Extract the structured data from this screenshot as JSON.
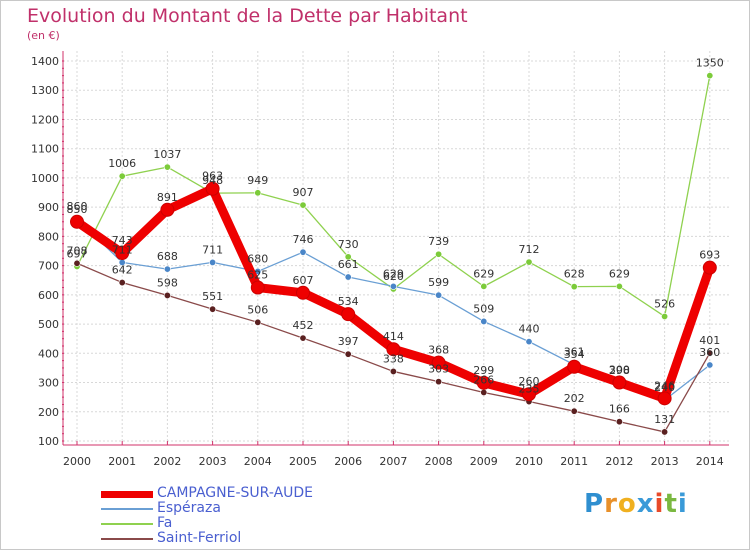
{
  "title": "Evolution du Montant de la Dette par Habitant",
  "unit": "(en €)",
  "logo": "Proxiti",
  "colors": {
    "title": "#c0306a",
    "grid": "#d8d8d8",
    "axis": "#d0306a",
    "legend_text": "#4a5fd0"
  },
  "chart_data": {
    "type": "line",
    "x": [
      "2000",
      "2001",
      "2002",
      "2003",
      "2004",
      "2005",
      "2006",
      "2007",
      "2008",
      "2009",
      "2010",
      "2011",
      "2012",
      "2013",
      "2014"
    ],
    "ylim": [
      100,
      1400
    ],
    "yticks": [
      "100",
      "200",
      "300",
      "400",
      "500",
      "600",
      "700",
      "800",
      "900",
      "1000",
      "1100",
      "1200",
      "1300",
      "1400"
    ],
    "grid": true,
    "legend_position": "bottom-left",
    "series": [
      {
        "name": "Fa",
        "color": "#8fd14f",
        "marker": "#7ccb3a",
        "values": [
          697,
          1006,
          1037,
          948,
          949,
          907,
          730,
          620,
          739,
          629,
          712,
          628,
          629,
          526,
          1350
        ],
        "labels": [
          "697",
          "1006",
          "1037",
          "948",
          "949",
          "907",
          "730",
          "620",
          "739",
          "629",
          "712",
          "628",
          "629",
          "526",
          "1350"
        ]
      },
      {
        "name": "Espéraza",
        "color": "#6a9fd4",
        "marker": "#4a86c8",
        "values": [
          860,
          711,
          688,
          711,
          680,
          746,
          661,
          629,
          599,
          509,
          440,
          361,
          298,
          240,
          360
        ],
        "labels": [
          "860",
          "711",
          "688",
          "711",
          "680",
          "746",
          "661",
          "629",
          "599",
          "509",
          "440",
          "361",
          "298",
          "240",
          "360"
        ]
      },
      {
        "name": "Saint-Ferriol",
        "color": "#8a4a4a",
        "marker": "#5a2020",
        "values": [
          708,
          642,
          598,
          551,
          506,
          452,
          397,
          338,
          303,
          266,
          235,
          202,
          166,
          131,
          401
        ],
        "labels": [
          "708",
          "642",
          "598",
          "551",
          "506",
          "452",
          "397",
          "338",
          "303",
          "266",
          "235",
          "202",
          "166",
          "131",
          "401"
        ]
      },
      {
        "name": "CAMPAGNE-SUR-AUDE",
        "color": "#ee0000",
        "marker": "#ee0000",
        "values": [
          850,
          743,
          891,
          963,
          625,
          607,
          534,
          414,
          368,
          299,
          260,
          354,
          300,
          246,
          693
        ],
        "labels": [
          "850",
          "743",
          "891",
          "963",
          "625",
          "607",
          "534",
          "414",
          "368",
          "299",
          "260",
          "354",
          "300",
          "246",
          "693"
        ]
      }
    ],
    "legend": [
      "CAMPAGNE-SUR-AUDE",
      "Espéraza",
      "Fa",
      "Saint-Ferriol"
    ]
  }
}
